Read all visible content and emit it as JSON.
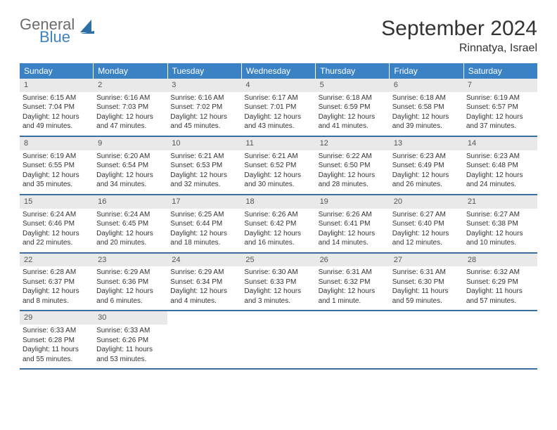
{
  "brand": {
    "text_general": "General",
    "text_blue": "Blue",
    "icon_color": "#2f6fa8"
  },
  "title": "September 2024",
  "location": "Rinnatya, Israel",
  "colors": {
    "header_bg": "#3b82c4",
    "header_text": "#ffffff",
    "daynum_bg": "#e9e9e9",
    "row_border": "#3b6fa0",
    "text": "#333333"
  },
  "days_of_week": [
    "Sunday",
    "Monday",
    "Tuesday",
    "Wednesday",
    "Thursday",
    "Friday",
    "Saturday"
  ],
  "weeks": [
    [
      {
        "num": "1",
        "sunrise": "Sunrise: 6:15 AM",
        "sunset": "Sunset: 7:04 PM",
        "daylight1": "Daylight: 12 hours",
        "daylight2": "and 49 minutes."
      },
      {
        "num": "2",
        "sunrise": "Sunrise: 6:16 AM",
        "sunset": "Sunset: 7:03 PM",
        "daylight1": "Daylight: 12 hours",
        "daylight2": "and 47 minutes."
      },
      {
        "num": "3",
        "sunrise": "Sunrise: 6:16 AM",
        "sunset": "Sunset: 7:02 PM",
        "daylight1": "Daylight: 12 hours",
        "daylight2": "and 45 minutes."
      },
      {
        "num": "4",
        "sunrise": "Sunrise: 6:17 AM",
        "sunset": "Sunset: 7:01 PM",
        "daylight1": "Daylight: 12 hours",
        "daylight2": "and 43 minutes."
      },
      {
        "num": "5",
        "sunrise": "Sunrise: 6:18 AM",
        "sunset": "Sunset: 6:59 PM",
        "daylight1": "Daylight: 12 hours",
        "daylight2": "and 41 minutes."
      },
      {
        "num": "6",
        "sunrise": "Sunrise: 6:18 AM",
        "sunset": "Sunset: 6:58 PM",
        "daylight1": "Daylight: 12 hours",
        "daylight2": "and 39 minutes."
      },
      {
        "num": "7",
        "sunrise": "Sunrise: 6:19 AM",
        "sunset": "Sunset: 6:57 PM",
        "daylight1": "Daylight: 12 hours",
        "daylight2": "and 37 minutes."
      }
    ],
    [
      {
        "num": "8",
        "sunrise": "Sunrise: 6:19 AM",
        "sunset": "Sunset: 6:55 PM",
        "daylight1": "Daylight: 12 hours",
        "daylight2": "and 35 minutes."
      },
      {
        "num": "9",
        "sunrise": "Sunrise: 6:20 AM",
        "sunset": "Sunset: 6:54 PM",
        "daylight1": "Daylight: 12 hours",
        "daylight2": "and 34 minutes."
      },
      {
        "num": "10",
        "sunrise": "Sunrise: 6:21 AM",
        "sunset": "Sunset: 6:53 PM",
        "daylight1": "Daylight: 12 hours",
        "daylight2": "and 32 minutes."
      },
      {
        "num": "11",
        "sunrise": "Sunrise: 6:21 AM",
        "sunset": "Sunset: 6:52 PM",
        "daylight1": "Daylight: 12 hours",
        "daylight2": "and 30 minutes."
      },
      {
        "num": "12",
        "sunrise": "Sunrise: 6:22 AM",
        "sunset": "Sunset: 6:50 PM",
        "daylight1": "Daylight: 12 hours",
        "daylight2": "and 28 minutes."
      },
      {
        "num": "13",
        "sunrise": "Sunrise: 6:23 AM",
        "sunset": "Sunset: 6:49 PM",
        "daylight1": "Daylight: 12 hours",
        "daylight2": "and 26 minutes."
      },
      {
        "num": "14",
        "sunrise": "Sunrise: 6:23 AM",
        "sunset": "Sunset: 6:48 PM",
        "daylight1": "Daylight: 12 hours",
        "daylight2": "and 24 minutes."
      }
    ],
    [
      {
        "num": "15",
        "sunrise": "Sunrise: 6:24 AM",
        "sunset": "Sunset: 6:46 PM",
        "daylight1": "Daylight: 12 hours",
        "daylight2": "and 22 minutes."
      },
      {
        "num": "16",
        "sunrise": "Sunrise: 6:24 AM",
        "sunset": "Sunset: 6:45 PM",
        "daylight1": "Daylight: 12 hours",
        "daylight2": "and 20 minutes."
      },
      {
        "num": "17",
        "sunrise": "Sunrise: 6:25 AM",
        "sunset": "Sunset: 6:44 PM",
        "daylight1": "Daylight: 12 hours",
        "daylight2": "and 18 minutes."
      },
      {
        "num": "18",
        "sunrise": "Sunrise: 6:26 AM",
        "sunset": "Sunset: 6:42 PM",
        "daylight1": "Daylight: 12 hours",
        "daylight2": "and 16 minutes."
      },
      {
        "num": "19",
        "sunrise": "Sunrise: 6:26 AM",
        "sunset": "Sunset: 6:41 PM",
        "daylight1": "Daylight: 12 hours",
        "daylight2": "and 14 minutes."
      },
      {
        "num": "20",
        "sunrise": "Sunrise: 6:27 AM",
        "sunset": "Sunset: 6:40 PM",
        "daylight1": "Daylight: 12 hours",
        "daylight2": "and 12 minutes."
      },
      {
        "num": "21",
        "sunrise": "Sunrise: 6:27 AM",
        "sunset": "Sunset: 6:38 PM",
        "daylight1": "Daylight: 12 hours",
        "daylight2": "and 10 minutes."
      }
    ],
    [
      {
        "num": "22",
        "sunrise": "Sunrise: 6:28 AM",
        "sunset": "Sunset: 6:37 PM",
        "daylight1": "Daylight: 12 hours",
        "daylight2": "and 8 minutes."
      },
      {
        "num": "23",
        "sunrise": "Sunrise: 6:29 AM",
        "sunset": "Sunset: 6:36 PM",
        "daylight1": "Daylight: 12 hours",
        "daylight2": "and 6 minutes."
      },
      {
        "num": "24",
        "sunrise": "Sunrise: 6:29 AM",
        "sunset": "Sunset: 6:34 PM",
        "daylight1": "Daylight: 12 hours",
        "daylight2": "and 4 minutes."
      },
      {
        "num": "25",
        "sunrise": "Sunrise: 6:30 AM",
        "sunset": "Sunset: 6:33 PM",
        "daylight1": "Daylight: 12 hours",
        "daylight2": "and 3 minutes."
      },
      {
        "num": "26",
        "sunrise": "Sunrise: 6:31 AM",
        "sunset": "Sunset: 6:32 PM",
        "daylight1": "Daylight: 12 hours",
        "daylight2": "and 1 minute."
      },
      {
        "num": "27",
        "sunrise": "Sunrise: 6:31 AM",
        "sunset": "Sunset: 6:30 PM",
        "daylight1": "Daylight: 11 hours",
        "daylight2": "and 59 minutes."
      },
      {
        "num": "28",
        "sunrise": "Sunrise: 6:32 AM",
        "sunset": "Sunset: 6:29 PM",
        "daylight1": "Daylight: 11 hours",
        "daylight2": "and 57 minutes."
      }
    ],
    [
      {
        "num": "29",
        "sunrise": "Sunrise: 6:33 AM",
        "sunset": "Sunset: 6:28 PM",
        "daylight1": "Daylight: 11 hours",
        "daylight2": "and 55 minutes."
      },
      {
        "num": "30",
        "sunrise": "Sunrise: 6:33 AM",
        "sunset": "Sunset: 6:26 PM",
        "daylight1": "Daylight: 11 hours",
        "daylight2": "and 53 minutes."
      },
      {
        "empty": true
      },
      {
        "empty": true
      },
      {
        "empty": true
      },
      {
        "empty": true
      },
      {
        "empty": true
      }
    ]
  ]
}
